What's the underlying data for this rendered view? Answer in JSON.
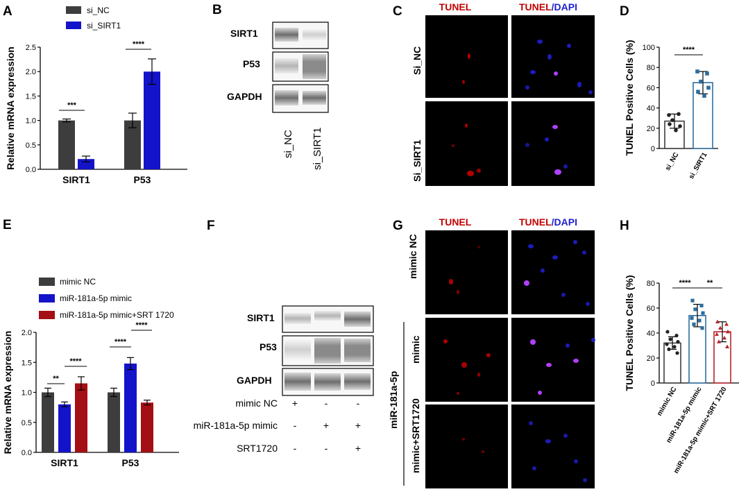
{
  "panels": {
    "A": "A",
    "B": "B",
    "C": "C",
    "D": "D",
    "E": "E",
    "F": "F",
    "G": "G",
    "H": "H"
  },
  "colors": {
    "dark_gray": "#3d3d3d",
    "blue": "#1313c9",
    "dark_red": "#a30f14",
    "dot_blue": "#2e6e9e",
    "dot_red": "#b5232a",
    "tunel_red": "#c00000",
    "dapi_blue": "#1f1fd0"
  },
  "chart_data": [
    {
      "panel": "A",
      "type": "bar",
      "categories": [
        "SIRT1",
        "P53"
      ],
      "series": [
        {
          "name": "si_NC",
          "values": [
            1.0,
            1.0
          ],
          "errors": [
            0.03,
            0.15
          ],
          "color": "#3d3d3d"
        },
        {
          "name": "si_SIRT1",
          "values": [
            0.21,
            2.0
          ],
          "errors": [
            0.06,
            0.26
          ],
          "color": "#1313c9"
        }
      ],
      "ylabel": "Relative mRNA expression",
      "ylim": [
        0,
        2.5
      ],
      "yticks": [
        "0.0",
        "0.5",
        "1.0",
        "1.5",
        "2.0",
        "2.5"
      ],
      "significance": [
        "***",
        "****"
      ],
      "legend_position": "top-left"
    },
    {
      "panel": "D",
      "type": "bar",
      "categories": [
        "si_NC",
        "si_SIRT1"
      ],
      "values": [
        27,
        65
      ],
      "errors": [
        7,
        11
      ],
      "points": [
        [
          33,
          34,
          28,
          22,
          24,
          18
        ],
        [
          76,
          74,
          66,
          60,
          56,
          52
        ]
      ],
      "ylabel": "TUNEL Positive Cells (%)",
      "ylim": [
        0,
        100
      ],
      "yticks": [
        "0",
        "20",
        "40",
        "60",
        "80",
        "100"
      ],
      "significance": [
        "****"
      ]
    },
    {
      "panel": "E",
      "type": "bar",
      "categories": [
        "SIRT1",
        "P53"
      ],
      "series": [
        {
          "name": "mimic NC",
          "values": [
            1.0,
            1.0
          ],
          "errors": [
            0.07,
            0.07
          ],
          "color": "#3d3d3d"
        },
        {
          "name": "miR-181a-5p mimic",
          "values": [
            0.8,
            1.48
          ],
          "errors": [
            0.04,
            0.1
          ],
          "color": "#1313c9"
        },
        {
          "name": "miR-181a-5p mimic+SRT 1720",
          "values": [
            1.15,
            0.83
          ],
          "errors": [
            0.11,
            0.04
          ],
          "color": "#a30f14"
        }
      ],
      "ylabel": "Relative mRNA expression",
      "ylim": [
        0,
        2.0
      ],
      "yticks": [
        "0.0",
        "0.5",
        "1.0",
        "1.5",
        "2.0"
      ],
      "significance": [
        "**",
        "****",
        "****",
        "****"
      ],
      "legend_position": "top-left"
    },
    {
      "panel": "H",
      "type": "bar",
      "categories": [
        "mimic NC",
        "miR-181a-5p mimic",
        "miR-181a-5p mimic+SRT 1720"
      ],
      "values": [
        32,
        54,
        41
      ],
      "errors": [
        5,
        9,
        8
      ],
      "points": [
        [
          41,
          38,
          35,
          33,
          31,
          29,
          27,
          24
        ],
        [
          66,
          62,
          59,
          56,
          52,
          50,
          47,
          44
        ],
        [
          49,
          47,
          44,
          41,
          39,
          36,
          33,
          29
        ]
      ],
      "ylabel": "TUNEL Positive Cells (%)",
      "ylim": [
        0,
        80
      ],
      "yticks": [
        "0",
        "20",
        "40",
        "60",
        "80"
      ],
      "significance": [
        "****",
        "**"
      ]
    }
  ],
  "blots": {
    "B": {
      "proteins": [
        "SIRT1",
        "P53",
        "GAPDH"
      ],
      "lanes": [
        "si_NC",
        "si_SIRT1"
      ]
    },
    "F": {
      "proteins": [
        "SIRT1",
        "P53",
        "GAPDH"
      ],
      "treatments": [
        {
          "label": "mimic NC",
          "signs": [
            "+",
            "-",
            "-"
          ]
        },
        {
          "label": "miR-181a-5p mimic",
          "signs": [
            "-",
            "+",
            "+"
          ]
        },
        {
          "label": "SRT1720",
          "signs": [
            "-",
            "-",
            "+"
          ]
        }
      ]
    }
  },
  "images": {
    "C": {
      "col_titles": {
        "tunel": "TUNEL",
        "slash": "/",
        "dapi": "DAPI"
      },
      "rows": [
        "Si_NC",
        "Si_SIRT1"
      ]
    },
    "G": {
      "col_titles": {
        "tunel": "TUNEL",
        "slash": "/",
        "dapi": "DAPI"
      },
      "rows": [
        "mimic NC",
        "mimic",
        "mimic+SRT1720"
      ],
      "group_label": "miR-181a-5p"
    }
  }
}
